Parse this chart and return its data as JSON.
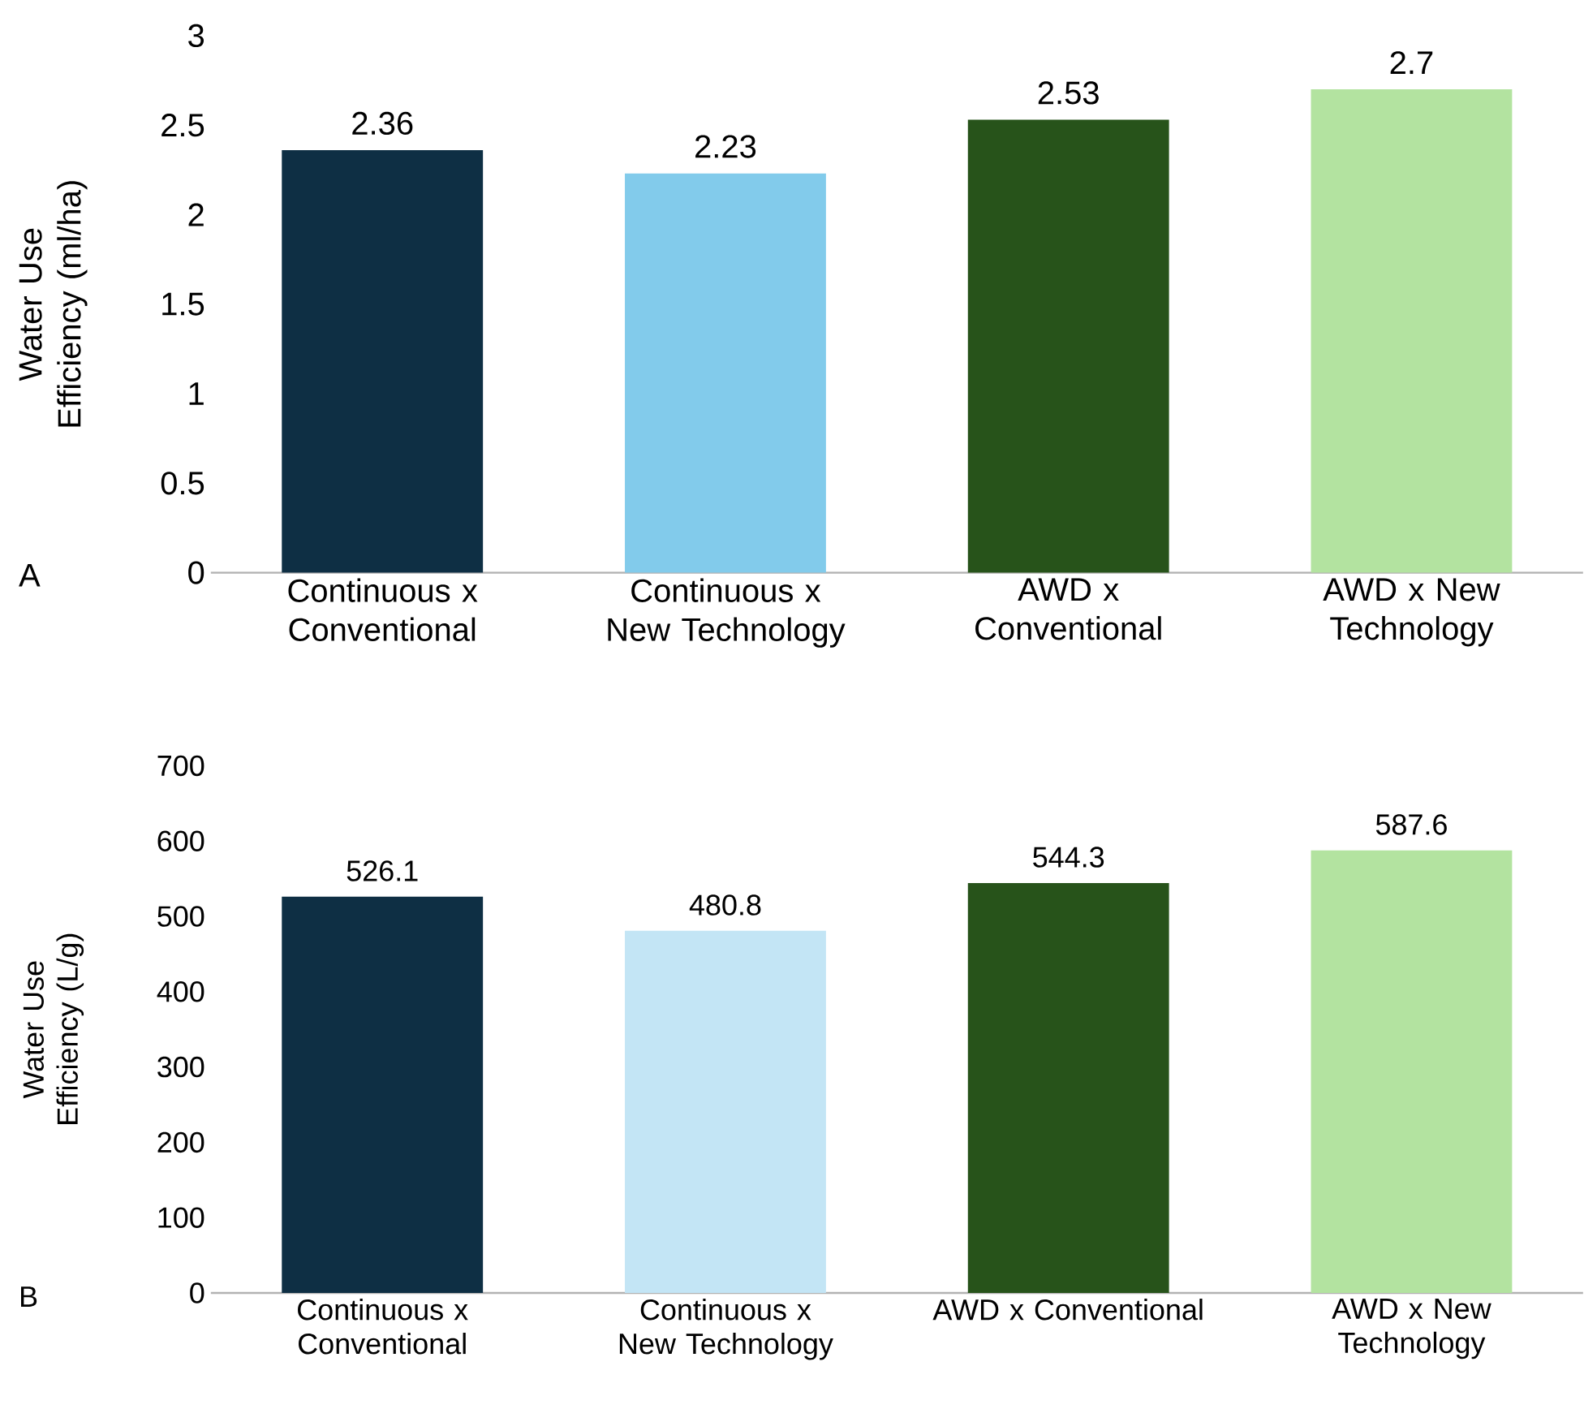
{
  "chart_data": [
    {
      "type": "bar",
      "ylabel": "Water Use Efficiency (ml/ha)",
      "categories": [
        "Continuous x Conventional",
        "Continuous x New Technology",
        "AWD x Conventional",
        "AWD x New Technology"
      ],
      "values": [
        2.36,
        2.23,
        2.53,
        2.7
      ],
      "colors": [
        "#0e2f44",
        "#82cbeb",
        "#27531a",
        "#b3e3a0"
      ],
      "ylim": [
        0,
        3
      ],
      "yticks": [
        0,
        0.5,
        1,
        1.5,
        2,
        2.5,
        3
      ],
      "data_labels": true,
      "grid": false,
      "legend": false,
      "annotations": [
        "A"
      ]
    },
    {
      "type": "bar",
      "ylabel": "Water Use Efficiency (L/g)",
      "categories": [
        "Continuous x Conventional",
        "Continuous x New Technology",
        "AWD x Conventional",
        "AWD x New Technology"
      ],
      "values": [
        526.1,
        480.8,
        544.3,
        587.6
      ],
      "colors": [
        "#0e2f44",
        "#c3e5f5",
        "#27531a",
        "#b3e3a0"
      ],
      "ylim": [
        0,
        700
      ],
      "yticks": [
        0,
        100,
        200,
        300,
        400,
        500,
        600,
        700
      ],
      "data_labels": true,
      "grid": false,
      "legend": false,
      "annotations": [
        "B"
      ]
    }
  ]
}
